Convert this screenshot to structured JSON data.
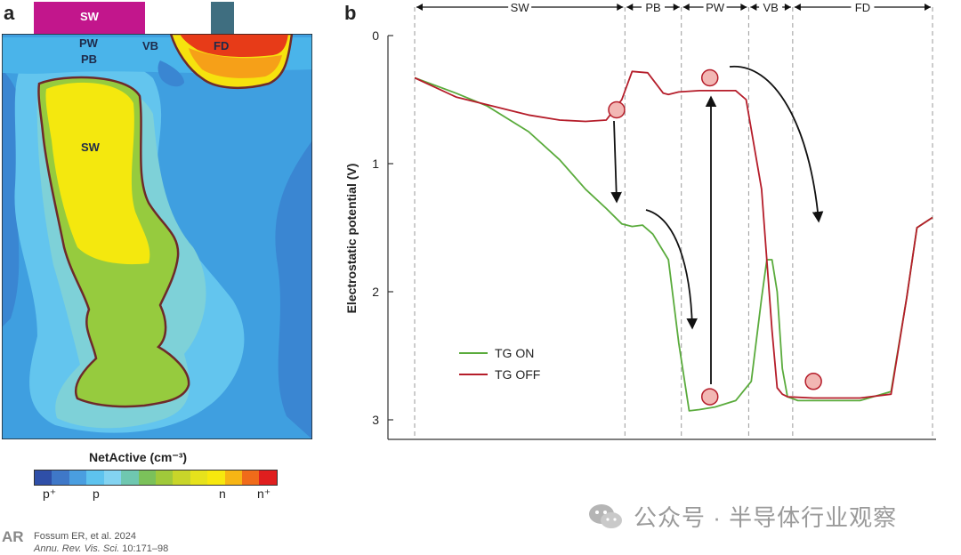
{
  "panel_a": {
    "label": "a",
    "gates": {
      "sw": "SW"
    },
    "regions": {
      "pw": "PW",
      "pb": "PB",
      "vb": "VB",
      "fd": "FD",
      "sw": "SW"
    },
    "colorbar": {
      "title": "NetActive (cm⁻³)",
      "ticks": [
        "p⁺",
        "p",
        "n",
        "n⁺"
      ],
      "colors": [
        "#2f4fa8",
        "#3f78c8",
        "#4a9ee0",
        "#5ec3ee",
        "#83d3f1",
        "#6fc7b0",
        "#7bc15a",
        "#a0c93a",
        "#c8d52a",
        "#e6e21c",
        "#f7e80e",
        "#f7b514",
        "#f06b1a",
        "#e01e1e"
      ]
    }
  },
  "panel_b": {
    "label": "b",
    "regions": [
      "SW",
      "PB",
      "PW",
      "VB",
      "FD"
    ],
    "chart_data": {
      "type": "line",
      "title": "",
      "xlabel": "",
      "ylabel": "Electrostatic potential (V)",
      "ylim": [
        0,
        3
      ],
      "y_inverted": true,
      "yticks": [
        "0",
        "1",
        "2",
        "3"
      ],
      "legend_position": "bottom-left",
      "series": [
        {
          "name": "TG ON",
          "color": "#5aab3c",
          "x": [
            0.0,
            0.08,
            0.14,
            0.22,
            0.28,
            0.33,
            0.37,
            0.4,
            0.42,
            0.44,
            0.46,
            0.49,
            0.51,
            0.53,
            0.55,
            0.58,
            0.62,
            0.65,
            0.67,
            0.68,
            0.69,
            0.7,
            0.71,
            0.72,
            0.74,
            0.77,
            0.86,
            0.92,
            0.95,
            0.97,
            1.0
          ],
          "y": [
            0.33,
            0.45,
            0.55,
            0.75,
            0.97,
            1.2,
            1.35,
            1.47,
            1.49,
            1.48,
            1.55,
            1.75,
            2.4,
            2.93,
            2.92,
            2.9,
            2.85,
            2.7,
            2.05,
            1.75,
            1.75,
            2.0,
            2.6,
            2.82,
            2.85,
            2.85,
            2.85,
            2.78,
            2.05,
            1.5,
            1.42
          ]
        },
        {
          "name": "TG OFF",
          "color": "#b51d2a",
          "x": [
            0.0,
            0.08,
            0.14,
            0.22,
            0.28,
            0.33,
            0.37,
            0.4,
            0.42,
            0.45,
            0.48,
            0.49,
            0.51,
            0.55,
            0.62,
            0.64,
            0.67,
            0.69,
            0.7,
            0.71,
            0.72,
            0.77,
            0.86,
            0.92,
            0.95,
            0.97,
            1.0
          ],
          "y": [
            0.33,
            0.48,
            0.54,
            0.62,
            0.66,
            0.67,
            0.66,
            0.5,
            0.28,
            0.29,
            0.45,
            0.46,
            0.44,
            0.43,
            0.43,
            0.5,
            1.2,
            2.3,
            2.75,
            2.8,
            2.82,
            2.83,
            2.83,
            2.8,
            2.05,
            1.5,
            1.42
          ]
        }
      ],
      "annotations": {
        "circles": [
          {
            "x": 0.39,
            "y": 0.58
          },
          {
            "x": 0.57,
            "y": 0.33
          },
          {
            "x": 0.57,
            "y": 2.82
          },
          {
            "x": 0.77,
            "y": 2.7
          }
        ]
      }
    }
  },
  "credit": {
    "logo": "AR",
    "line1": "Fossum ER, et al. 2024",
    "line2_journal": "Annu. Rev. Vis. Sci.",
    "line2_rest": " 10:171–98"
  },
  "watermark": "公众号 · 半导体行业观察"
}
